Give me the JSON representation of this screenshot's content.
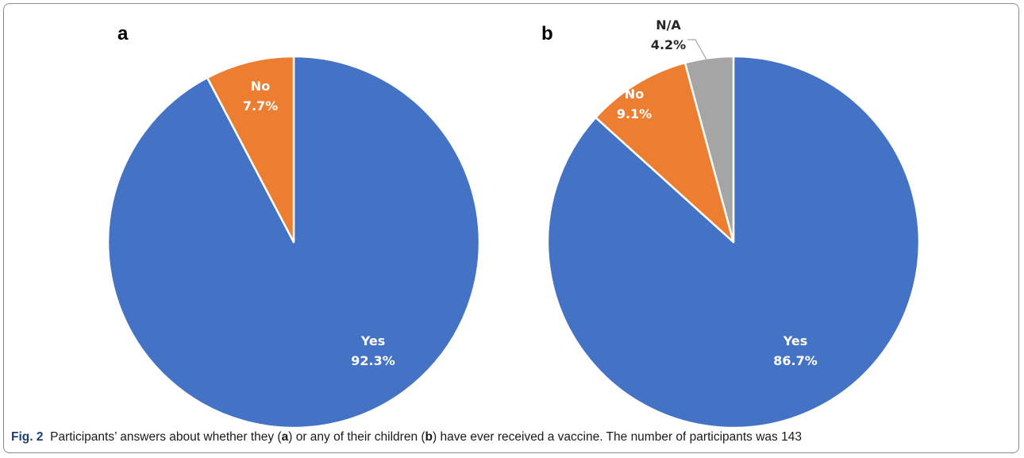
{
  "chart_data": [
    {
      "type": "pie",
      "panel": "a",
      "slices": [
        {
          "label": "Yes",
          "value": 92.3,
          "value_label": "92.3%",
          "color": "#4472C4",
          "label_color": "#ffffff"
        },
        {
          "label": "No",
          "value": 7.7,
          "value_label": "7.7%",
          "color": "#ED7D31",
          "label_color": "#ffffff"
        }
      ]
    },
    {
      "type": "pie",
      "panel": "b",
      "slices": [
        {
          "label": "Yes",
          "value": 86.7,
          "value_label": "86.7%",
          "color": "#4472C4",
          "label_color": "#ffffff"
        },
        {
          "label": "No",
          "value": 9.1,
          "value_label": "9.1%",
          "color": "#ED7D31",
          "label_color": "#ffffff"
        },
        {
          "label": "N/A",
          "value": 4.2,
          "value_label": "4.2%",
          "color": "#A5A5A5",
          "label_color": "#262626"
        }
      ]
    }
  ],
  "caption": {
    "fig_label": "Fig. 2",
    "parts": [
      "Participants’ answers about whether they (",
      "a",
      ") or any of their children (",
      "b",
      ") have ever received a vaccine. The number of participants was 143"
    ]
  }
}
